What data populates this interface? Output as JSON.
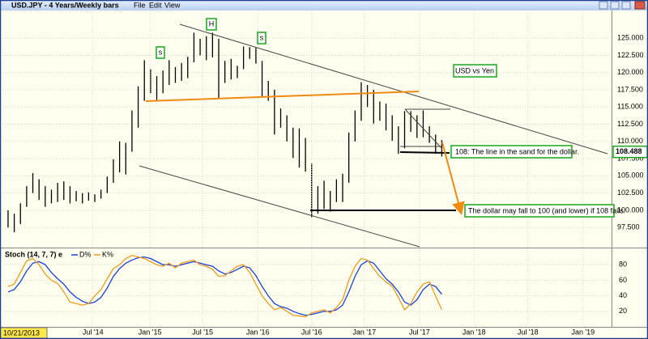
{
  "window": {
    "title": "USD.JPY - 4 Years/Weekly bars",
    "menu": [
      "File",
      "Edit",
      "View"
    ]
  },
  "chart_data": [
    {
      "type": "ohlc",
      "color": "#000000",
      "high": [
        100,
        99.5,
        101,
        103.5,
        105.4,
        104.5,
        103.5,
        103,
        104,
        104.2,
        103.5,
        102.8,
        102.5,
        102.6,
        102.3,
        103,
        104.9,
        107.4,
        110,
        109.8,
        114.5,
        118,
        121.8,
        120.5,
        119.5,
        120.3,
        121.8,
        120.8,
        121.4,
        122.3,
        125.8,
        124.9,
        125.3,
        125.8,
        124.9,
        121.7,
        122,
        121,
        123.8,
        123.7,
        123.6,
        121.7,
        118.8,
        117.5,
        114.8,
        113.8,
        112,
        111.9,
        110.5,
        106.8,
        103.5,
        104.3,
        102.8,
        104.5,
        105.3,
        111.3,
        114.5,
        118.6,
        118.2,
        117.5,
        115.8,
        115.5,
        113.8,
        112.2,
        114.4,
        114.4,
        113.8,
        114.5,
        112.2,
        111,
        110.2
      ],
      "low": [
        97.5,
        96.8,
        98,
        100.5,
        102.5,
        101.5,
        100.5,
        101,
        101.2,
        101.5,
        101,
        101.3,
        101,
        101.4,
        101.2,
        101.7,
        102.5,
        104,
        105.5,
        105.2,
        108.5,
        112,
        115.9,
        117,
        115.9,
        117,
        118.2,
        118.5,
        118.8,
        119.2,
        121.5,
        122.5,
        121.8,
        122.2,
        116.2,
        118.5,
        119,
        119.2,
        120.5,
        122,
        121.3,
        116.5,
        115.9,
        111,
        112,
        110,
        107.6,
        106.2,
        105.6,
        99,
        99.5,
        100.2,
        99.8,
        101.2,
        101.2,
        104,
        110,
        113,
        115,
        112.6,
        113,
        111.6,
        110.1,
        108.2,
        109,
        111.4,
        110.5,
        110.6,
        109.8,
        108.2,
        107.8
      ],
      "ylim": [
        94.7,
        128.9
      ],
      "xlim": [
        -1.3,
        97.4
      ],
      "grid": true,
      "yticks": [
        {
          "value": 97.5,
          "label": "97.500"
        },
        {
          "value": 100,
          "label": "100.000"
        },
        {
          "value": 102.5,
          "label": "102.500"
        },
        {
          "value": 105,
          "label": "105.000"
        },
        {
          "value": 107.5,
          "label": "107.500"
        },
        {
          "value": 110,
          "label": "110.000"
        },
        {
          "value": 112.5,
          "label": "112.500"
        },
        {
          "value": 115,
          "label": "115.000"
        },
        {
          "value": 117.5,
          "label": "117.500"
        },
        {
          "value": 120,
          "label": "120.000"
        },
        {
          "value": 122.5,
          "label": "122.500"
        },
        {
          "value": 125,
          "label": "125.000"
        }
      ],
      "last_price": 108.488,
      "annotations": [
        "USD vs Yen",
        "108:  The line in the sand for the dollar.",
        "The dollar may fall to 100 (and lower) if 108 fails."
      ],
      "pattern_labels": [
        "s",
        "H",
        "s"
      ]
    },
    {
      "type": "line",
      "title": "Stoch (14, 7, 7) e",
      "ylim": [
        0,
        100
      ],
      "xlim": [
        -1.3,
        97.4
      ],
      "yticks": [
        20,
        40,
        60,
        80
      ],
      "grid": true,
      "cursor_date": "10/21/2013",
      "xticks": [
        {
          "value": 13.7,
          "label": "Jul '14"
        },
        {
          "value": 22.9,
          "label": "Jan '15"
        },
        {
          "value": 31.4,
          "label": "Jul '15"
        },
        {
          "value": 40.3,
          "label": "Jan '16"
        },
        {
          "value": 49,
          "label": "Jul '16"
        },
        {
          "value": 57.5,
          "label": "Jan '17"
        },
        {
          "value": 66.4,
          "label": "Jul '17"
        },
        {
          "value": 75.2,
          "label": "Jan '18"
        },
        {
          "value": 83.9,
          "label": "Jul '18"
        },
        {
          "value": 92.8,
          "label": "Jan '19"
        }
      ],
      "series": [
        {
          "name": "D%",
          "color": "#1a3fd6",
          "values": [
            45,
            48,
            58,
            72,
            82,
            84,
            80,
            70,
            62,
            55,
            45,
            38,
            33,
            30,
            32,
            38,
            50,
            65,
            75,
            82,
            86,
            89,
            90,
            88,
            84,
            80,
            80,
            78,
            80,
            82,
            84,
            82,
            80,
            78,
            72,
            68,
            70,
            74,
            78,
            76,
            66,
            52,
            40,
            30,
            26,
            24,
            20,
            17,
            15,
            16,
            18,
            20,
            20,
            22,
            28,
            45,
            65,
            80,
            85,
            82,
            72,
            62,
            55,
            45,
            32,
            28,
            35,
            48,
            55,
            52,
            42
          ]
        },
        {
          "name": "K%",
          "color": "#f09a1a",
          "values": [
            52,
            55,
            70,
            85,
            88,
            80,
            68,
            60,
            56,
            45,
            32,
            30,
            28,
            30,
            40,
            48,
            62,
            75,
            80,
            88,
            92,
            90,
            88,
            84,
            80,
            78,
            82,
            76,
            82,
            84,
            86,
            80,
            78,
            74,
            65,
            66,
            72,
            78,
            80,
            70,
            55,
            40,
            30,
            22,
            25,
            20,
            15,
            14,
            13,
            18,
            20,
            22,
            18,
            25,
            35,
            60,
            78,
            88,
            86,
            75,
            65,
            58,
            52,
            38,
            22,
            30,
            45,
            55,
            58,
            40,
            22
          ]
        }
      ]
    }
  ]
}
